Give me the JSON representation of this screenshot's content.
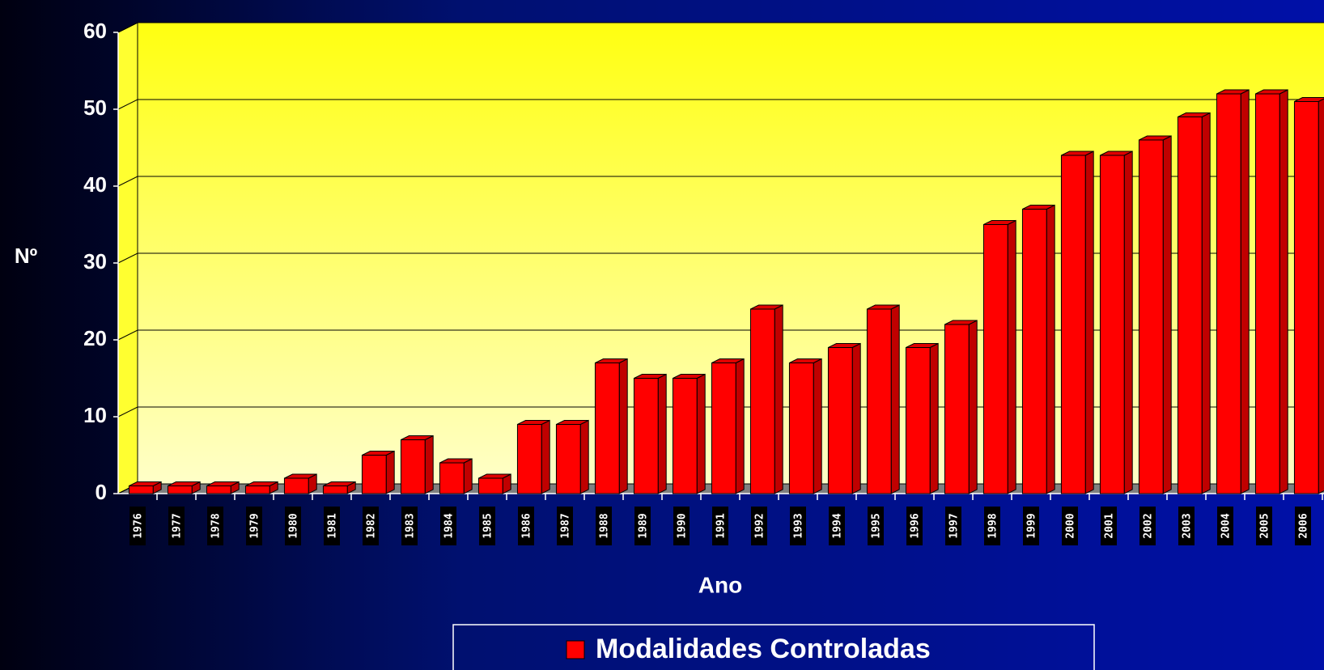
{
  "chart_data": {
    "type": "bar3d",
    "categories": [
      "1976",
      "1977",
      "1978",
      "1979",
      "1980",
      "1981",
      "1982",
      "1983",
      "1984",
      "1985",
      "1986",
      "1987",
      "1988",
      "1989",
      "1990",
      "1991",
      "1992",
      "1993",
      "1994",
      "1995",
      "1996",
      "1997",
      "1998",
      "1999",
      "2000",
      "2001",
      "2002",
      "2003",
      "2004",
      "2005",
      "2006"
    ],
    "series": [
      {
        "name": "Modalidades Controladas",
        "color": "#ff0000",
        "values": [
          1,
          1,
          1,
          1,
          2,
          1,
          5,
          7,
          4,
          2,
          9,
          9,
          17,
          15,
          15,
          17,
          24,
          17,
          19,
          24,
          19,
          22,
          35,
          37,
          44,
          44,
          46,
          49,
          52,
          52,
          51
        ]
      }
    ],
    "ylim": [
      0,
      60
    ],
    "yticks": [
      0,
      10,
      20,
      30,
      40,
      50,
      60
    ],
    "ylabel": "Nº",
    "xlabel": "Ano",
    "grid": true,
    "legend": "bottom"
  }
}
